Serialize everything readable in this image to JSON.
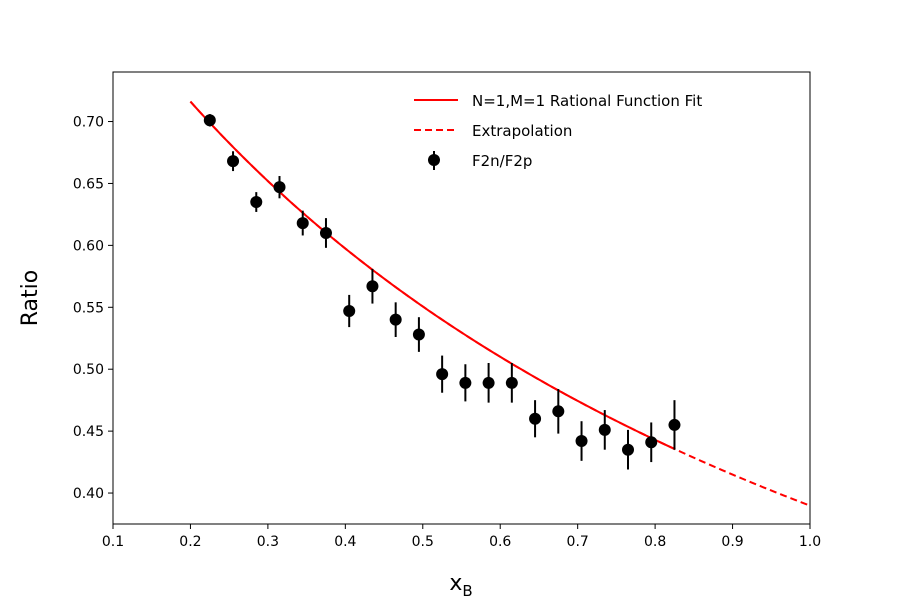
{
  "chart_data": {
    "type": "scatter",
    "xlabel": "x",
    "xlabel_sub": "B",
    "ylabel": "Ratio",
    "xlim": [
      0.1,
      1.0
    ],
    "ylim": [
      0.375,
      0.74
    ],
    "xticks": [
      "0.1",
      "0.2",
      "0.3",
      "0.4",
      "0.5",
      "0.6",
      "0.7",
      "0.8",
      "0.9",
      "1.0"
    ],
    "yticks": [
      "0.40",
      "0.45",
      "0.50",
      "0.55",
      "0.60",
      "0.65",
      "0.70"
    ],
    "grid": false,
    "legend_position": "top-right",
    "colors": {
      "fit": "#ff0000",
      "data": "#000000"
    },
    "series": [
      {
        "name": "F2n/F2p",
        "kind": "errorbar",
        "x": [
          0.225,
          0.255,
          0.285,
          0.315,
          0.345,
          0.375,
          0.405,
          0.435,
          0.465,
          0.495,
          0.525,
          0.555,
          0.585,
          0.615,
          0.645,
          0.675,
          0.705,
          0.735,
          0.765,
          0.795,
          0.825
        ],
        "y": [
          0.701,
          0.668,
          0.635,
          0.647,
          0.618,
          0.61,
          0.547,
          0.567,
          0.54,
          0.528,
          0.496,
          0.489,
          0.489,
          0.489,
          0.46,
          0.466,
          0.442,
          0.451,
          0.435,
          0.441,
          0.455
        ],
        "yerr": [
          0.005,
          0.008,
          0.008,
          0.009,
          0.01,
          0.012,
          0.013,
          0.014,
          0.014,
          0.014,
          0.015,
          0.015,
          0.016,
          0.016,
          0.015,
          0.018,
          0.016,
          0.016,
          0.016,
          0.016,
          0.02
        ]
      },
      {
        "name": "N=1,M=1 Rational Function Fit",
        "kind": "line",
        "style": "solid",
        "x_range": [
          0.2,
          0.825
        ]
      },
      {
        "name": "Extrapolation",
        "kind": "line",
        "style": "dashed",
        "x_range": [
          0.2,
          1.0
        ]
      }
    ]
  }
}
